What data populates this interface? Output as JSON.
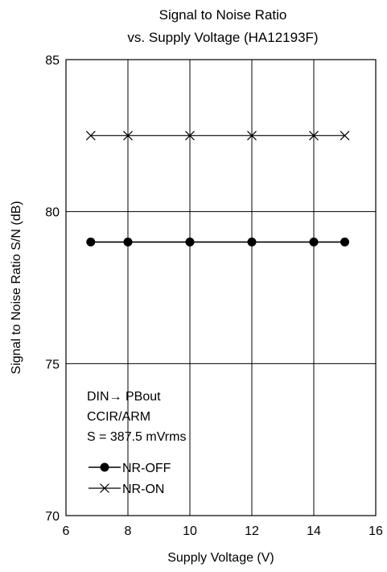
{
  "chart_data": {
    "type": "line",
    "title_lines": [
      "Signal to Noise Ratio",
      "vs. Supply Voltage  (HA12193F)"
    ],
    "xlabel": "Supply Voltage  (V)",
    "ylabel": "Signal to Noise Ratio  S/N  (dB)",
    "xlim": [
      6,
      16
    ],
    "ylim": [
      70,
      85
    ],
    "x_ticks": [
      6,
      8,
      10,
      12,
      14,
      16
    ],
    "y_ticks": [
      70,
      75,
      80,
      85
    ],
    "grid": true,
    "series": [
      {
        "name": "NR-OFF",
        "marker": "filled-circle",
        "x": [
          6.8,
          8,
          10,
          12,
          14,
          15
        ],
        "y": [
          79.0,
          79.0,
          79.0,
          79.0,
          79.0,
          79.0
        ]
      },
      {
        "name": "NR-ON",
        "marker": "x-cross",
        "x": [
          6.8,
          8,
          10,
          12,
          14,
          15
        ],
        "y": [
          82.5,
          82.5,
          82.5,
          82.5,
          82.5,
          82.5
        ]
      }
    ],
    "annotation": {
      "lines": [
        "DIN→ PBout",
        "CCIR/ARM",
        "S = 387.5 mVrms"
      ]
    },
    "legend_position": "bottom-left"
  }
}
